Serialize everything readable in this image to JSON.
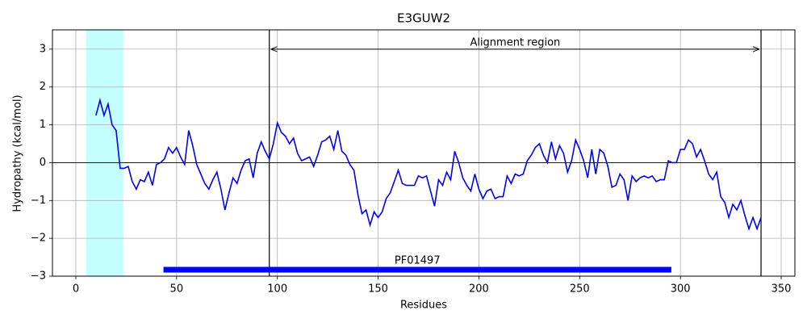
{
  "chart_data": {
    "type": "line",
    "title": "E3GUW2",
    "xlabel": "Residues",
    "ylabel": "Hydropathy (kcal/mol)",
    "color": "#0000ff",
    "x": [
      10,
      12,
      14,
      16,
      18,
      20,
      22,
      24,
      26,
      28,
      30,
      32,
      34,
      36,
      38,
      40,
      42,
      44,
      46,
      48,
      50,
      52,
      54,
      56,
      58,
      60,
      62,
      64,
      66,
      68,
      70,
      72,
      74,
      76,
      78,
      80,
      82,
      84,
      86,
      88,
      90,
      92,
      94,
      96,
      98,
      100,
      102,
      104,
      106,
      108,
      110,
      112,
      114,
      116,
      118,
      120,
      122,
      124,
      126,
      128,
      130,
      132,
      134,
      136,
      138,
      140,
      142,
      144,
      146,
      148,
      150,
      152,
      154,
      156,
      158,
      160,
      162,
      164,
      166,
      168,
      170,
      172,
      174,
      176,
      178,
      180,
      182,
      184,
      186,
      188,
      190,
      192,
      194,
      196,
      198,
      200,
      202,
      204,
      206,
      208,
      210,
      212,
      214,
      216,
      218,
      220,
      222,
      224,
      226,
      228,
      230,
      232,
      234,
      236,
      238,
      240,
      242,
      244,
      246,
      248,
      250,
      252,
      254,
      256,
      258,
      260,
      262,
      264,
      266,
      268,
      270,
      272,
      274,
      276,
      278,
      280,
      282,
      284,
      286,
      288,
      290,
      292,
      294,
      296,
      298,
      300,
      302,
      304,
      306,
      308,
      310,
      312,
      314,
      316,
      318,
      320,
      322,
      324,
      326,
      328,
      330,
      332,
      334,
      336,
      338,
      340
    ],
    "values": [
      1.25,
      1.65,
      1.25,
      1.55,
      1.0,
      0.85,
      -0.15,
      -0.15,
      -0.1,
      -0.5,
      -0.7,
      -0.45,
      -0.5,
      -0.25,
      -0.6,
      -0.05,
      0.0,
      0.1,
      0.4,
      0.25,
      0.4,
      0.15,
      -0.05,
      0.85,
      0.45,
      -0.05,
      -0.3,
      -0.55,
      -0.7,
      -0.45,
      -0.25,
      -0.7,
      -1.25,
      -0.8,
      -0.4,
      -0.55,
      -0.2,
      0.05,
      0.1,
      -0.4,
      0.25,
      0.55,
      0.3,
      0.1,
      0.5,
      1.05,
      0.8,
      0.7,
      0.5,
      0.65,
      0.25,
      0.05,
      0.1,
      0.15,
      -0.1,
      0.2,
      0.55,
      0.6,
      0.7,
      0.35,
      0.85,
      0.3,
      0.2,
      -0.05,
      -0.2,
      -0.85,
      -1.35,
      -1.25,
      -1.65,
      -1.3,
      -1.45,
      -1.3,
      -0.95,
      -0.8,
      -0.5,
      -0.2,
      -0.55,
      -0.6,
      -0.6,
      -0.6,
      -0.35,
      -0.4,
      -0.35,
      -0.75,
      -1.15,
      -0.45,
      -0.6,
      -0.25,
      -0.45,
      0.3,
      0.0,
      -0.4,
      -0.6,
      -0.75,
      -0.3,
      -0.7,
      -0.95,
      -0.75,
      -0.7,
      -0.95,
      -0.9,
      -0.9,
      -0.35,
      -0.55,
      -0.3,
      -0.35,
      -0.3,
      0.05,
      0.2,
      0.4,
      0.5,
      0.2,
      0.0,
      0.55,
      0.1,
      0.45,
      0.25,
      -0.25,
      0.05,
      0.6,
      0.35,
      0.05,
      -0.4,
      0.35,
      -0.3,
      0.35,
      0.25,
      -0.1,
      -0.65,
      -0.6,
      -0.3,
      -0.45,
      -1.0,
      -0.35,
      -0.5,
      -0.4,
      -0.35,
      -0.4,
      -0.35,
      -0.5,
      -0.45,
      -0.45,
      0.05,
      0.0,
      0.0,
      0.35,
      0.35,
      0.6,
      0.5,
      0.15,
      0.35,
      0.05,
      -0.3,
      -0.45,
      -0.25,
      -0.9,
      -1.05,
      -1.45,
      -1.1,
      -1.25,
      -1.0,
      -1.4,
      -1.75,
      -1.45,
      -1.75,
      -1.45
    ],
    "xlim": [
      -11.6,
      356.8
    ],
    "ylim": [
      -3,
      3.51
    ],
    "xticks": [
      0,
      50,
      100,
      150,
      200,
      250,
      300,
      350
    ],
    "yticks": [
      {
        "value": -3,
        "label": "−3"
      },
      {
        "value": -2,
        "label": "−2"
      },
      {
        "value": -1,
        "label": "−1"
      },
      0,
      1,
      2,
      3
    ],
    "grid": true,
    "hline": 0,
    "span": [
      5.2,
      23.6
    ],
    "span_color": "#c4ffff",
    "region": {
      "label": "Alignment region",
      "start": 96,
      "end": 340,
      "y": 3
    },
    "domain": {
      "label": "PF01497",
      "start": 43.5,
      "end": 295.5,
      "y": -2.83
    }
  }
}
